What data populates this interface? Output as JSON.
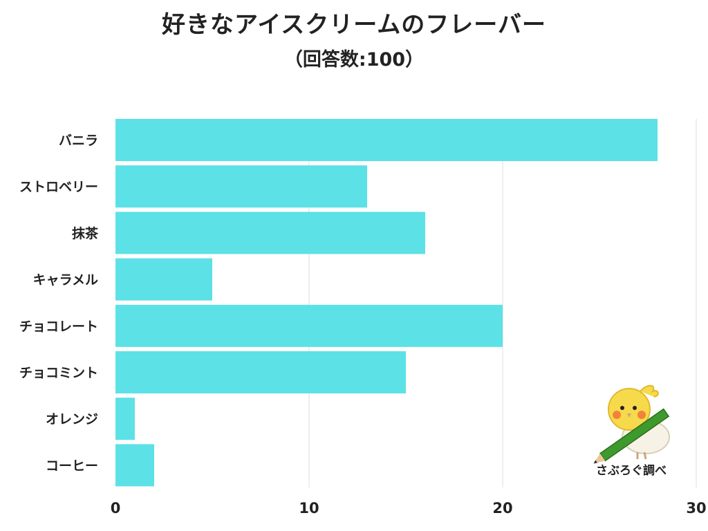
{
  "title": "好きなアイスクリームのフレーバー",
  "subtitle": "（回答数:100）",
  "credit": "さぶろぐ調べ",
  "colors": {
    "bar": "#5ce1e6",
    "grid": "#dddddd",
    "text": "#222222"
  },
  "chart_data": {
    "type": "bar",
    "orientation": "horizontal",
    "categories": [
      "バニラ",
      "ストロベリー",
      "抹茶",
      "キャラメル",
      "チョコレート",
      "チョコミント",
      "オレンジ",
      "コーヒー"
    ],
    "values": [
      28,
      13,
      16,
      5,
      20,
      15,
      1,
      2
    ],
    "xlim": [
      0,
      30
    ],
    "xticks": [
      0,
      10,
      20,
      30
    ],
    "grid": true,
    "legend": "none"
  }
}
